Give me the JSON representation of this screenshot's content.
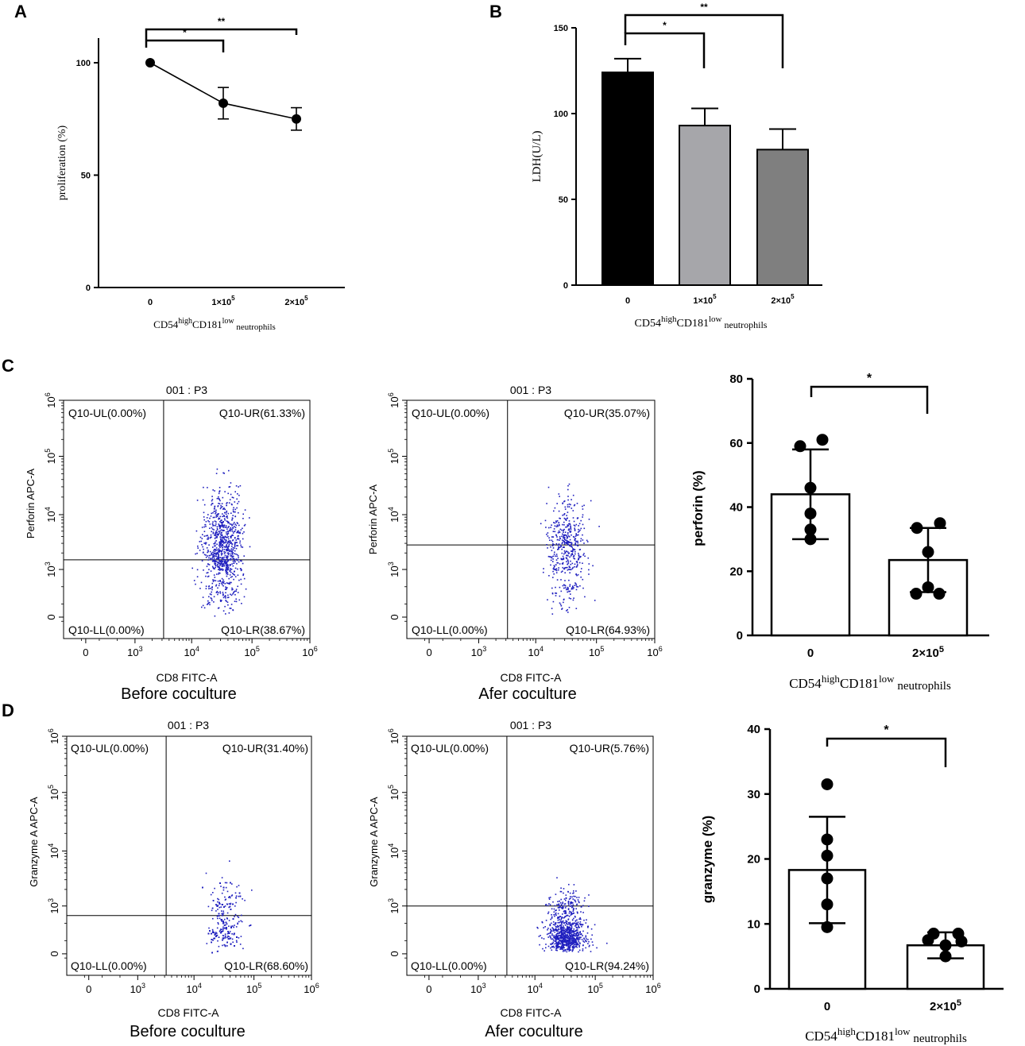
{
  "chart_data": [
    {
      "id": "A",
      "type": "line",
      "panel_label": "A",
      "ylabel": "proliferation (%)",
      "xlabel": {
        "base1": "CD54",
        "sup1": "high",
        "base2": "CD181",
        "sup2": "low",
        "sub": " neutrophils"
      },
      "categories": [
        "0",
        "1×10",
        "2×10"
      ],
      "cat_sup": [
        "",
        "5",
        "5"
      ],
      "values": [
        100,
        82,
        75
      ],
      "errors": [
        0,
        7,
        5
      ],
      "yticks": [
        "0",
        "50",
        "100"
      ],
      "ylim": [
        0,
        115
      ],
      "sig": [
        {
          "from": 0,
          "to": 1,
          "label": "*"
        },
        {
          "from": 0,
          "to": 2,
          "label": "**"
        }
      ]
    },
    {
      "id": "B",
      "type": "bar",
      "panel_label": "B",
      "ylabel": "LDH(U/L)",
      "xlabel": {
        "base1": "CD54",
        "sup1": "high",
        "base2": "CD181",
        "sup2": "low",
        "sub": " neutrophils"
      },
      "categories": [
        "0",
        "1×10",
        "2×10"
      ],
      "cat_sup": [
        "",
        "5",
        "5"
      ],
      "values": [
        124,
        93,
        79
      ],
      "errors": [
        8,
        10,
        12
      ],
      "colors": [
        "#000000",
        "#a6a6aa",
        "#7f7f7f"
      ],
      "yticks": [
        "0",
        "50",
        "100",
        "150"
      ],
      "ylim": [
        0,
        150
      ],
      "sig": [
        {
          "from": 0,
          "to": 1,
          "label": "*"
        },
        {
          "from": 0,
          "to": 2,
          "label": "**"
        }
      ]
    },
    {
      "id": "C_bar",
      "type": "bar",
      "panel_label": "C",
      "ylabel": "perforin (%)",
      "xlabel": {
        "base1": "CD54",
        "sup1": "high",
        "base2": "CD181",
        "sup2": "low",
        "sub": " neutrophils"
      },
      "categories": [
        "0",
        "2×10"
      ],
      "cat_sup": [
        "",
        "5"
      ],
      "values": [
        44,
        23.5
      ],
      "errors": [
        14,
        10
      ],
      "points": [
        [
          61,
          59,
          46,
          38,
          33,
          30
        ],
        [
          35,
          33.5,
          26,
          15,
          13,
          13
        ]
      ],
      "yticks": [
        "0",
        "20",
        "40",
        "60",
        "80"
      ],
      "ylim": [
        0,
        80
      ],
      "sig": [
        {
          "from": 0,
          "to": 1,
          "label": "*"
        }
      ]
    },
    {
      "id": "D_bar",
      "type": "bar",
      "panel_label": "D",
      "ylabel": "granzyme (%)",
      "xlabel": {
        "base1": "CD54",
        "sup1": "high",
        "base2": "CD181",
        "sup2": "low",
        "sub": " neutrophils"
      },
      "categories": [
        "0",
        "2×10"
      ],
      "cat_sup": [
        "",
        "5"
      ],
      "values": [
        18.3,
        6.7
      ],
      "errors": [
        8.2,
        2
      ],
      "points": [
        [
          31.5,
          23,
          20.5,
          17,
          13,
          9.5
        ],
        [
          8.5,
          8.5,
          7.5,
          7.3,
          6.7,
          5
        ]
      ],
      "yticks": [
        "0",
        "10",
        "20",
        "30",
        "40"
      ],
      "ylim": [
        0,
        40
      ],
      "sig": [
        {
          "from": 0,
          "to": 1,
          "label": "*"
        }
      ]
    }
  ],
  "flow_plots": [
    {
      "id": "C1",
      "title": "001 : P3",
      "ylabel": "Perforin APC-A",
      "xlabel": "CD8 FITC-A",
      "caption": "Before coculture",
      "ul": "Q10-UL(0.00%)",
      "ur": "Q10-UR(61.33%)",
      "ll": "Q10-LL(0.00%)",
      "lr": "Q10-LR(38.67%)",
      "gate_x": 3200,
      "gate_y": 1500,
      "spread_y": 0.5,
      "center_y": 2600,
      "count": 900,
      "seed": 11
    },
    {
      "id": "C2",
      "title": "001 : P3",
      "ylabel": "Perforin APC-A",
      "xlabel": "CD8 FITC-A",
      "caption": "Afer coculture",
      "ul": "Q10-UL(0.00%)",
      "ur": "Q10-UR(35.07%)",
      "ll": "Q10-LL(0.00%)",
      "lr": "Q10-LR(64.93%)",
      "gate_x": 3200,
      "gate_y": 2800,
      "spread_y": 0.45,
      "center_y": 2400,
      "count": 480,
      "seed": 23
    },
    {
      "id": "D1",
      "title": "001 : P3",
      "ylabel": "Granzyme A APC-A",
      "xlabel": "CD8 FITC-A",
      "caption": "Before coculture",
      "ul": "Q10-UL(0.00%)",
      "ur": "Q10-UR(31.40%)",
      "ll": "Q10-LL(0.00%)",
      "lr": "Q10-LR(68.60%)",
      "gate_x": 3200,
      "gate_y": 800,
      "spread_y": 0.32,
      "center_y": 650,
      "count": 600,
      "seed": 37
    },
    {
      "id": "D2",
      "title": "001 : P3",
      "ylabel": "Granzyme A APC-A",
      "xlabel": "CD8 FITC-A",
      "caption": "Afer coculture",
      "ul": "Q10-UL(0.00%)",
      "ur": "Q10-UR(5.76%)",
      "ll": "Q10-LL(0.00%)",
      "lr": "Q10-LR(94.24%)",
      "gate_x": 3200,
      "gate_y": 1000,
      "spread_y": 0.28,
      "center_y": 420,
      "count": 900,
      "seed": 53
    }
  ],
  "flow_axis": {
    "x_ticks": [
      "0",
      "10",
      "10",
      "10",
      "10"
    ],
    "x_sups": [
      "",
      "3",
      "4",
      "5",
      "6"
    ],
    "y_ticks": [
      "0",
      "10",
      "10",
      "10",
      "10"
    ],
    "y_sups": [
      "",
      "3",
      "4",
      "5",
      "6"
    ]
  },
  "colors": {
    "dots": "#1f1fbf",
    "line": "#000000"
  }
}
